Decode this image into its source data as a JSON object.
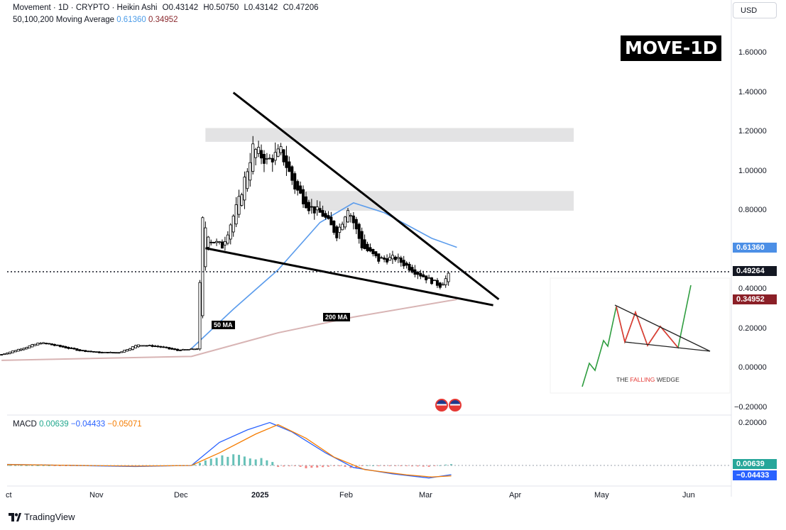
{
  "legend": {
    "symbol": "Movement · 1D · CRYPTO · Heikin Ashi",
    "open": "O0.43142",
    "high": "H0.50750",
    "low": "L0.43142",
    "close": "C0.47206",
    "ma_title": "50,100,200 Moving Average",
    "ma_val1": "0.61360",
    "ma_val2": "0.34952",
    "macd_title": "MACD",
    "macd_val1": "0.00639",
    "macd_val2": "−0.04433",
    "macd_val3": "−0.05071"
  },
  "currency": "USD",
  "badge_title": "MOVE-1D",
  "price_badges": {
    "ma50": "0.61360",
    "last": "0.49264",
    "ma200": "0.34952",
    "macd": "0.00639",
    "signal": "−0.04433"
  },
  "ma_labels": {
    "ma50": "50 MA",
    "ma200": "200 MA"
  },
  "inset": {
    "caption_pre": "THE ",
    "caption_red": "FALLING",
    "caption_post": " WEDGE"
  },
  "branding": "TradingView",
  "colors": {
    "ma50": "#5b9cec",
    "ma200": "#d8b4b4",
    "badge_blue": "#4c8fe6",
    "badge_dark": "#131722",
    "badge_red": "#8b1f27",
    "macd_line": "#2962ff",
    "signal_line": "#f57c00",
    "hist_up": "#26a69a",
    "hist_down": "#ef5350"
  },
  "chart_data": [
    {
      "type": "candlestick",
      "subtype": "Heikin Ashi",
      "x_ticks": [
        "ct",
        "Nov",
        "Dec",
        "2025",
        "Feb",
        "Mar",
        "Apr",
        "May",
        "Jun"
      ],
      "y_ticks": [
        "1.60000",
        "1.40000",
        "1.20000",
        "1.00000",
        "0.80000",
        "0.60000",
        "0.40000",
        "0.20000",
        "0.00000",
        "−0.20000"
      ],
      "ylim": [
        -0.2,
        1.7
      ],
      "price_series": [
        {
          "date": "2024-09-28",
          "value": 0.07
        },
        {
          "date": "2024-10-05",
          "value": 0.1
        },
        {
          "date": "2024-10-12",
          "value": 0.13
        },
        {
          "date": "2024-10-19",
          "value": 0.11
        },
        {
          "date": "2024-10-26",
          "value": 0.09
        },
        {
          "date": "2024-11-02",
          "value": 0.08
        },
        {
          "date": "2024-11-09",
          "value": 0.08
        },
        {
          "date": "2024-11-16",
          "value": 0.12
        },
        {
          "date": "2024-11-23",
          "value": 0.11
        },
        {
          "date": "2024-11-30",
          "value": 0.09
        },
        {
          "date": "2024-12-07",
          "value": 0.1
        },
        {
          "date": "2024-12-09",
          "value": 0.75
        },
        {
          "date": "2024-12-12",
          "value": 0.65
        },
        {
          "date": "2024-12-16",
          "value": 0.62
        },
        {
          "date": "2024-12-22",
          "value": 0.85
        },
        {
          "date": "2024-12-27",
          "value": 1.12
        },
        {
          "date": "2025-01-01",
          "value": 1.05
        },
        {
          "date": "2025-01-06",
          "value": 1.1
        },
        {
          "date": "2025-01-11",
          "value": 0.92
        },
        {
          "date": "2025-01-16",
          "value": 0.82
        },
        {
          "date": "2025-01-21",
          "value": 0.78
        },
        {
          "date": "2025-01-26",
          "value": 0.68
        },
        {
          "date": "2025-01-30",
          "value": 0.82
        },
        {
          "date": "2025-02-04",
          "value": 0.62
        },
        {
          "date": "2025-02-10",
          "value": 0.55
        },
        {
          "date": "2025-02-16",
          "value": 0.56
        },
        {
          "date": "2025-02-22",
          "value": 0.5
        },
        {
          "date": "2025-02-28",
          "value": 0.45
        },
        {
          "date": "2025-03-04",
          "value": 0.42
        },
        {
          "date": "2025-03-07",
          "value": 0.47
        }
      ],
      "moving_averages": [
        {
          "name": "50 MA",
          "color": "#5b9cec",
          "points": [
            {
              "date": "2024-12-05",
              "value": 0.1
            },
            {
              "date": "2024-12-20",
              "value": 0.3
            },
            {
              "date": "2025-01-05",
              "value": 0.5
            },
            {
              "date": "2025-01-20",
              "value": 0.74
            },
            {
              "date": "2025-02-01",
              "value": 0.84
            },
            {
              "date": "2025-02-12",
              "value": 0.79
            },
            {
              "date": "2025-03-01",
              "value": 0.66
            },
            {
              "date": "2025-03-10",
              "value": 0.614
            }
          ]
        },
        {
          "name": "200 MA",
          "color": "#d8b4b4",
          "points": [
            {
              "date": "2024-09-28",
              "value": 0.04
            },
            {
              "date": "2024-12-05",
              "value": 0.06
            },
            {
              "date": "2025-01-05",
              "value": 0.18
            },
            {
              "date": "2025-02-01",
              "value": 0.26
            },
            {
              "date": "2025-03-10",
              "value": 0.3495
            }
          ]
        }
      ],
      "trendlines": [
        {
          "name": "upper",
          "from": {
            "date": "2024-12-20",
            "value": 1.4
          },
          "to": {
            "date": "2025-03-25",
            "value": 0.35
          }
        },
        {
          "name": "lower",
          "from": {
            "date": "2024-12-10",
            "value": 0.61
          },
          "to": {
            "date": "2025-03-23",
            "value": 0.32
          }
        }
      ],
      "zones": [
        {
          "from": "2024-12-10",
          "to": "2025-04-20",
          "low": 1.15,
          "high": 1.22
        },
        {
          "from": "2025-01-15",
          "to": "2025-04-20",
          "low": 0.8,
          "high": 0.9
        }
      ],
      "last_price": 0.49264
    },
    {
      "type": "macd",
      "y_ticks": [
        "0.20000"
      ],
      "macd": 0.00639,
      "signal": -0.04433,
      "histogram": -0.05071
    }
  ]
}
